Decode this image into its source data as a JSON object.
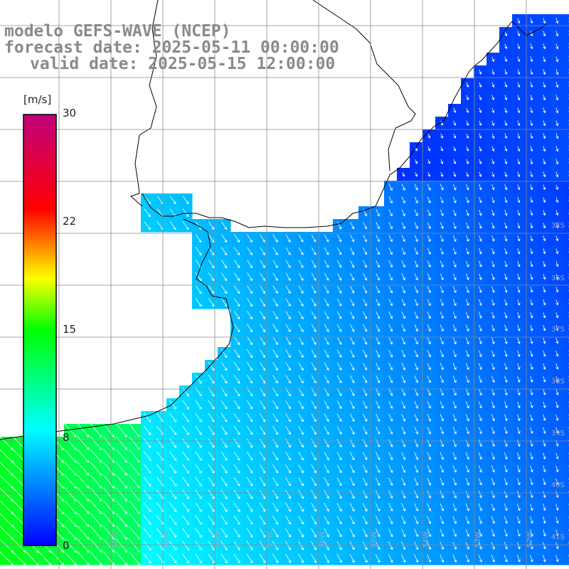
{
  "title": {
    "line1": "modelo GEFS-WAVE (NCEP)",
    "line2": "forecast date: 2025-05-11 00:00:00",
    "line3": "valid date: 2025-05-15 12:00:00"
  },
  "colorbar": {
    "unit": "[m/s]",
    "ticks": [
      "30",
      "22",
      "15",
      "8",
      "0"
    ],
    "colors": [
      "#0000ff",
      "#00ffff",
      "#00ff00",
      "#ffff00",
      "#ff0000",
      "#c0007c"
    ]
  },
  "latitude_labels": [
    "35S",
    "36S",
    "37S",
    "38S",
    "39S",
    "40S",
    "41S"
  ],
  "longitude_labels": [
    "60W",
    "59W",
    "58W",
    "57W",
    "56W",
    "55W",
    "54W",
    "53W",
    "52W",
    "51W"
  ],
  "colors": {
    "land": "#ffffff",
    "coast": "#000000",
    "grid": "#8a8a8a",
    "vector": "#ffffff",
    "title": "#8a8a8a"
  },
  "field": {
    "variable": "wind speed",
    "unit": "m/s",
    "range": [
      0,
      30
    ]
  }
}
